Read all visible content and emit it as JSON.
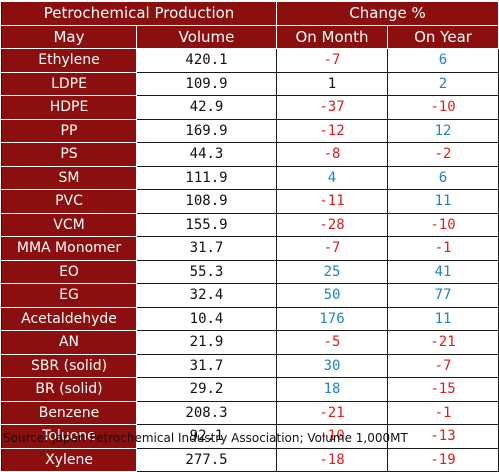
{
  "header": {
    "title": "Petrochemical Production",
    "change_title": "Change %",
    "col_name": "May",
    "col_volume": "Volume",
    "col_month": "On Month",
    "col_year": "On Year"
  },
  "rows": [
    {
      "name": "Ethylene",
      "volume": "420.1",
      "month": "-7",
      "year": "6"
    },
    {
      "name": "LDPE",
      "volume": "109.9",
      "month": "1",
      "year": "2"
    },
    {
      "name": "HDPE",
      "volume": "42.9",
      "month": "-37",
      "year": "-10"
    },
    {
      "name": "PP",
      "volume": "169.9",
      "month": "-12",
      "year": "12"
    },
    {
      "name": "PS",
      "volume": "44.3",
      "month": "-8",
      "year": "-2"
    },
    {
      "name": "SM",
      "volume": "111.9",
      "month": "4",
      "year": "6"
    },
    {
      "name": "PVC",
      "volume": "108.9",
      "month": "-11",
      "year": "11"
    },
    {
      "name": "VCM",
      "volume": "155.9",
      "month": "-28",
      "year": "-10"
    },
    {
      "name": "MMA Monomer",
      "volume": "31.7",
      "month": "-7",
      "year": "-1"
    },
    {
      "name": "EO",
      "volume": "55.3",
      "month": "25",
      "year": "41"
    },
    {
      "name": "EG",
      "volume": "32.4",
      "month": "50",
      "year": "77"
    },
    {
      "name": "Acetaldehyde",
      "volume": "10.4",
      "month": "176",
      "year": "11"
    },
    {
      "name": "AN",
      "volume": "21.9",
      "month": "-5",
      "year": "-21"
    },
    {
      "name": "SBR (solid)",
      "volume": "31.7",
      "month": "30",
      "year": "-7"
    },
    {
      "name": "BR (solid)",
      "volume": "29.2",
      "month": "18",
      "year": "-15"
    },
    {
      "name": "Benzene",
      "volume": "208.3",
      "month": "-21",
      "year": "-1"
    },
    {
      "name": "Toluene",
      "volume": "92.1",
      "month": "-10",
      "year": "-13"
    },
    {
      "name": "Xylene",
      "volume": "277.5",
      "month": "-18",
      "year": "-19"
    }
  ],
  "source": "Source: Japan Petrochemical Industry Association; Volume 1,000MT",
  "colors": {
    "header_bg": "#8b0f0f",
    "negative": "#d42020",
    "positive": "#1f84c0",
    "neutral": "#111111"
  }
}
